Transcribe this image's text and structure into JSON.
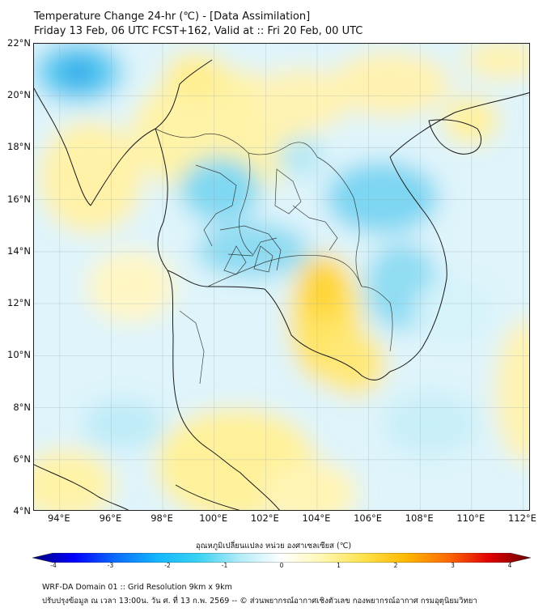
{
  "header": {
    "title_line1": "Temperature Change 24-hr (℃) - [Data Assimilation]",
    "title_line2": "Friday 13 Feb, 06 UTC FCST+162, Valid at :: Fri 20 Feb, 00 UTC"
  },
  "map": {
    "lat_labels": [
      "22°N",
      "20°N",
      "18°N",
      "16°N",
      "14°N",
      "12°N",
      "10°N",
      "8°N",
      "6°N",
      "4°N"
    ],
    "lon_labels": [
      "94°E",
      "96°E",
      "98°E",
      "100°E",
      "102°E",
      "104°E",
      "106°E",
      "108°E",
      "110°E",
      "112°E"
    ],
    "lat_range": [
      4,
      22
    ],
    "lon_range": [
      93,
      112.3
    ]
  },
  "colorbar": {
    "title": "อุณหภูมิเปลี่ยนแปลง หน่วย องศาเซลเซียส (℃)",
    "ticks": [
      "-4",
      "-3",
      "-2",
      "-1",
      "0",
      "1",
      "2",
      "3",
      "4"
    ],
    "min": -4,
    "max": 4,
    "colors": [
      "#00007a",
      "#0000ff",
      "#0a6cff",
      "#13b6ff",
      "#3ad2f2",
      "#b4ecf8",
      "#ffffff",
      "#fff7b0",
      "#ffe14a",
      "#ffb800",
      "#ff6a00",
      "#e00000",
      "#6b0000"
    ]
  },
  "footer": {
    "line1": "WRF-DA Domain 01 :: Grid Resolution 9km x 9km",
    "line2": "ปรับปรุงข้อมูล ณ เวลา 13:00น. วัน ศ. ที่ 13 ก.พ. 2569 -- © ส่วนพยากรณ์อากาศเชิงตัวเลข กองพยากรณ์อากาศ กรมอุตุนิยมวิทยา"
  }
}
